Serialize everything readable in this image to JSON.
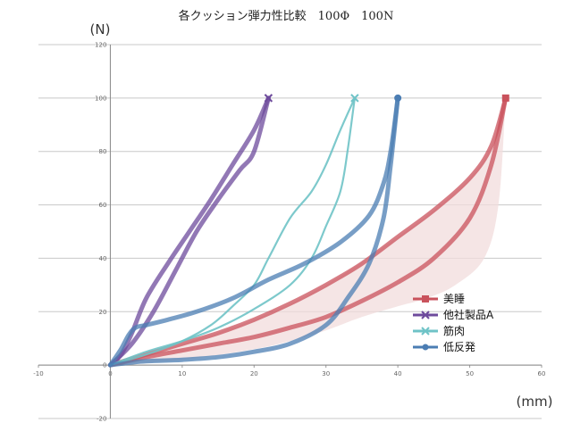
{
  "chart_data": {
    "type": "line",
    "title": "各クッション弾力性比較　100Φ　100N",
    "ylabel": "(N)",
    "xlabel": "(mm)",
    "xlim": [
      -10,
      60
    ],
    "ylim": [
      -20,
      120
    ],
    "x_ticks": [
      -10,
      0,
      10,
      20,
      30,
      40,
      50,
      60
    ],
    "y_ticks": [
      -20,
      0,
      20,
      40,
      60,
      80,
      100,
      120
    ],
    "grid": true,
    "legend_position": "right",
    "series": [
      {
        "name": "美睡",
        "color": "#c9525c",
        "marker": "square",
        "band_color": "#f2dcdc",
        "loading": [
          [
            0,
            0
          ],
          [
            5,
            3
          ],
          [
            10,
            5.5
          ],
          [
            15,
            8
          ],
          [
            20,
            10.5
          ],
          [
            25,
            14
          ],
          [
            30,
            18
          ],
          [
            35,
            24
          ],
          [
            40,
            31
          ],
          [
            45,
            40
          ],
          [
            50,
            55
          ],
          [
            53,
            75
          ],
          [
            55,
            100
          ]
        ],
        "unloading": [
          [
            55,
            100
          ],
          [
            53,
            82
          ],
          [
            50,
            70
          ],
          [
            45,
            58
          ],
          [
            40,
            48
          ],
          [
            35,
            38
          ],
          [
            30,
            30
          ],
          [
            25,
            23
          ],
          [
            20,
            17
          ],
          [
            15,
            12
          ],
          [
            10,
            8
          ],
          [
            5,
            4
          ],
          [
            0,
            0
          ]
        ],
        "band_upper": [
          [
            0,
            0
          ],
          [
            10,
            8
          ],
          [
            20,
            17
          ],
          [
            30,
            30
          ],
          [
            40,
            48
          ],
          [
            45,
            58
          ],
          [
            50,
            70
          ],
          [
            53,
            82
          ],
          [
            55,
            100
          ]
        ],
        "band_lower": [
          [
            55,
            100
          ],
          [
            54,
            60
          ],
          [
            52,
            40
          ],
          [
            48,
            30
          ],
          [
            44,
            25
          ],
          [
            40,
            22
          ],
          [
            35,
            18
          ],
          [
            30,
            13
          ],
          [
            25,
            9
          ],
          [
            20,
            6
          ],
          [
            10,
            2
          ],
          [
            0,
            0
          ]
        ]
      },
      {
        "name": "他社製品A",
        "color": "#6e4b9c",
        "marker": "x",
        "loading": [
          [
            0,
            0
          ],
          [
            3,
            8
          ],
          [
            6,
            20
          ],
          [
            9,
            35
          ],
          [
            12,
            50
          ],
          [
            15,
            62
          ],
          [
            18,
            73
          ],
          [
            20,
            80
          ],
          [
            22,
            100
          ]
        ],
        "unloading": [
          [
            22,
            100
          ],
          [
            20,
            88
          ],
          [
            17,
            75
          ],
          [
            14,
            62
          ],
          [
            11,
            50
          ],
          [
            8,
            38
          ],
          [
            5,
            25
          ],
          [
            3,
            12
          ],
          [
            1.5,
            4
          ],
          [
            0,
            0
          ]
        ]
      },
      {
        "name": "筋肉",
        "color": "#6fc3c7",
        "marker": "x",
        "loading": [
          [
            0,
            0
          ],
          [
            5,
            5
          ],
          [
            10,
            9
          ],
          [
            15,
            14
          ],
          [
            20,
            21
          ],
          [
            25,
            30
          ],
          [
            28,
            40
          ],
          [
            30,
            52
          ],
          [
            32,
            65
          ],
          [
            33,
            80
          ],
          [
            34,
            100
          ]
        ],
        "unloading": [
          [
            34,
            100
          ],
          [
            32,
            88
          ],
          [
            30,
            75
          ],
          [
            28,
            65
          ],
          [
            25,
            55
          ],
          [
            22,
            40
          ],
          [
            20,
            30
          ],
          [
            17,
            22
          ],
          [
            14,
            15
          ],
          [
            10,
            9
          ],
          [
            5,
            4
          ],
          [
            0,
            0
          ]
        ]
      },
      {
        "name": "低反発",
        "color": "#4b7db3",
        "marker": "circle",
        "loading": [
          [
            0,
            0
          ],
          [
            1.5,
            6
          ],
          [
            2.5,
            11
          ],
          [
            3.5,
            14
          ],
          [
            5,
            15
          ],
          [
            8,
            17
          ],
          [
            12,
            20
          ],
          [
            17,
            25
          ],
          [
            22,
            32
          ],
          [
            27,
            38
          ],
          [
            32,
            46
          ],
          [
            36,
            56
          ],
          [
            38,
            68
          ],
          [
            39,
            80
          ],
          [
            40,
            100
          ]
        ],
        "unloading": [
          [
            40,
            100
          ],
          [
            39,
            75
          ],
          [
            38,
            55
          ],
          [
            36,
            38
          ],
          [
            33,
            25
          ],
          [
            30,
            15
          ],
          [
            25,
            8
          ],
          [
            20,
            5
          ],
          [
            15,
            3
          ],
          [
            10,
            2
          ],
          [
            5,
            1.5
          ],
          [
            3,
            1
          ],
          [
            0,
            0
          ]
        ]
      }
    ]
  }
}
